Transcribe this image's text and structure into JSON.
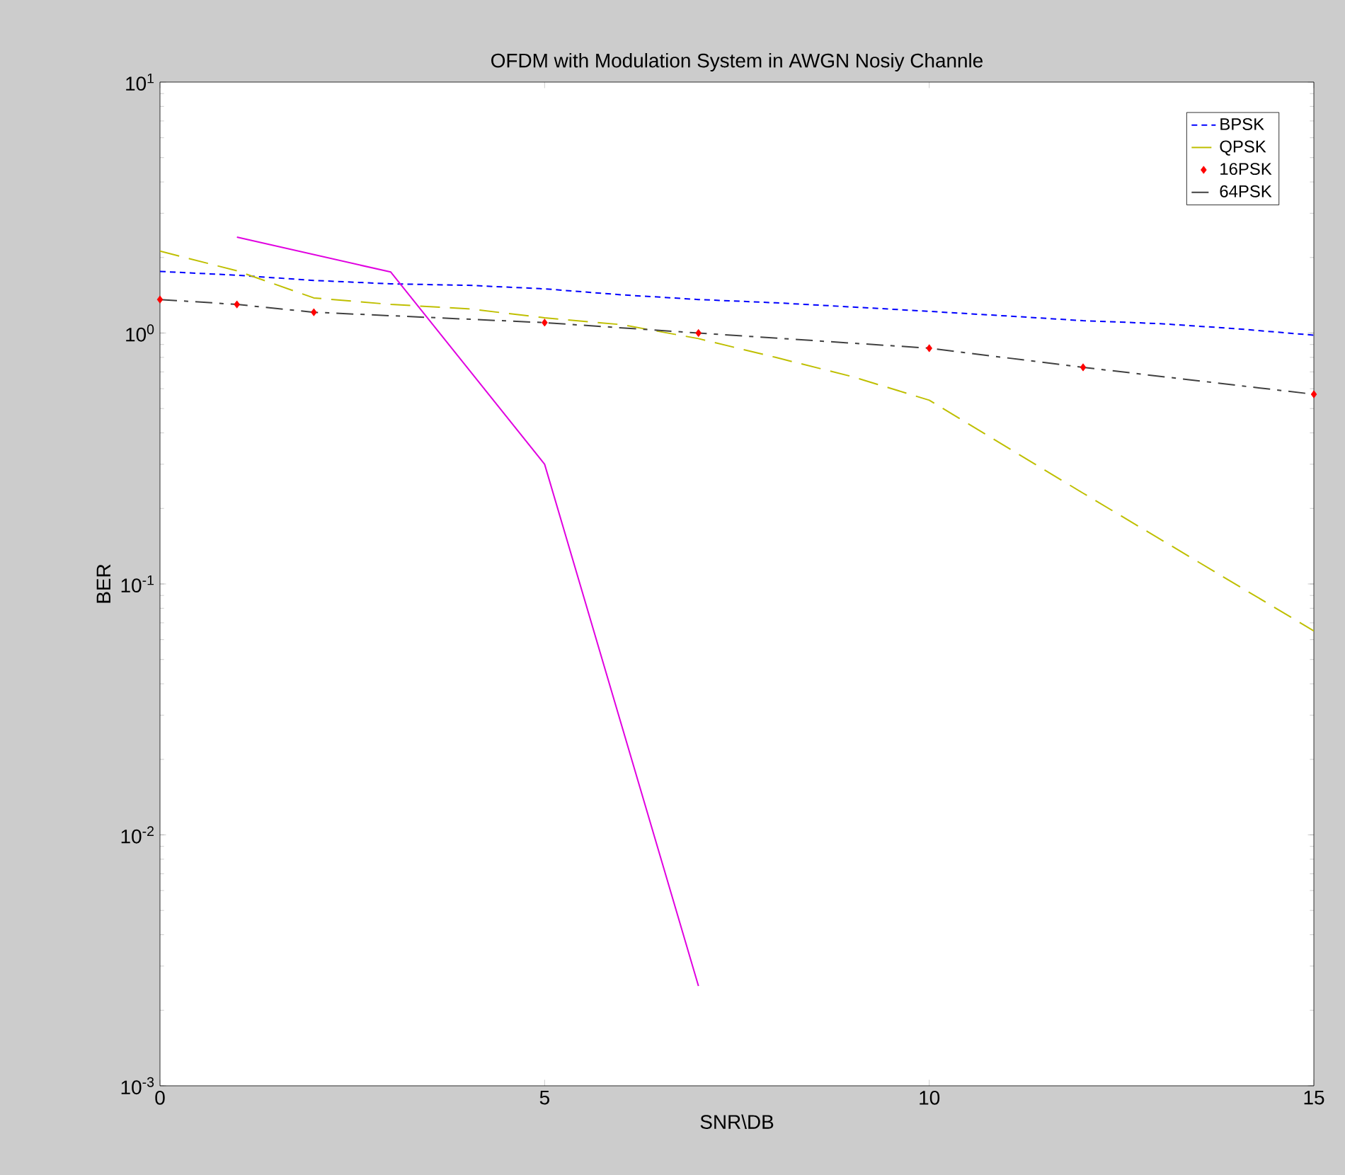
{
  "chart_data": {
    "type": "line",
    "title": "OFDM with Modulation System in AWGN Nosiy Channle",
    "xlabel": "SNR\\DB",
    "ylabel": "BER",
    "log": "y",
    "grid": false,
    "legend": "top right",
    "xlim": [
      0,
      15
    ],
    "ylim": [
      0.001,
      10
    ],
    "xticks": [
      0,
      5,
      10,
      15
    ],
    "yticks": [
      {
        "value": 0.001,
        "label": "10$^{-3}$"
      },
      {
        "value": 0.01,
        "label": "10$^{-2}$"
      },
      {
        "value": 0.1,
        "label": "10$^{-1}$"
      },
      {
        "value": 1,
        "label": "10$^{0}$"
      },
      {
        "value": 10,
        "label": "10$^{1}$"
      }
    ],
    "series": [
      {
        "name": "BPSK",
        "color": "#0000ff",
        "line_style": "dotted",
        "x": [
          0,
          1,
          2,
          3,
          4,
          5,
          6,
          7,
          8,
          9,
          10,
          11,
          12,
          13,
          14,
          15
        ],
        "values": [
          1.76,
          1.7,
          1.62,
          1.57,
          1.55,
          1.5,
          1.42,
          1.36,
          1.32,
          1.27,
          1.22,
          1.17,
          1.12,
          1.09,
          1.04,
          0.98
        ]
      },
      {
        "name": "QPSK",
        "color": "#bfbf00",
        "line_style": "dashed",
        "x": [
          0,
          1,
          2,
          3,
          4,
          5,
          6,
          7,
          8,
          9,
          10,
          12,
          15
        ],
        "values": [
          2.12,
          1.77,
          1.38,
          1.3,
          1.25,
          1.15,
          1.08,
          0.95,
          0.8,
          0.67,
          0.54,
          0.23,
          0.065
        ]
      },
      {
        "name": "16PSK",
        "type": "scatter",
        "marker": "diamond",
        "color": "#ff0000",
        "x": [
          0,
          1,
          2,
          5,
          7,
          10,
          12,
          15
        ],
        "values": [
          1.36,
          1.3,
          1.21,
          1.1,
          1.0,
          0.87,
          0.73,
          0.57
        ]
      },
      {
        "name": "64PSK",
        "color": "#404040",
        "line_style": "dashdot",
        "x": [
          0,
          1,
          2,
          5,
          7,
          10,
          12,
          15
        ],
        "values": [
          1.36,
          1.3,
          1.21,
          1.1,
          1.0,
          0.87,
          0.73,
          0.57
        ]
      },
      {
        "color": "#e000e0",
        "line_style": "solid",
        "x": [
          1,
          3,
          5,
          7
        ],
        "values": [
          2.41,
          1.75,
          0.3,
          0.0025
        ]
      }
    ]
  }
}
